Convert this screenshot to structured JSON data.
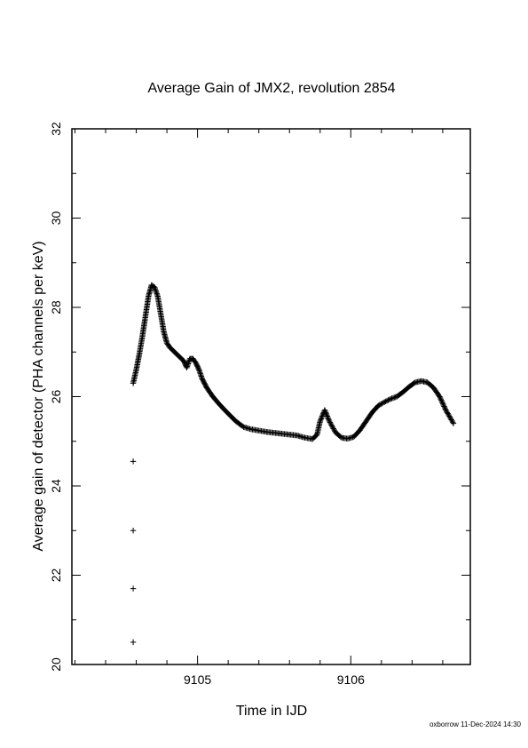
{
  "chart_data": {
    "type": "scatter",
    "title": "Average Gain of JMX2, revolution 2854",
    "xlabel": "Time in IJD",
    "ylabel": "Average gain of detector (PHA channels per keV)",
    "xlim": [
      9104.18,
      9106.78
    ],
    "ylim": [
      20,
      32
    ],
    "xticks": [
      9105,
      9106
    ],
    "xtick_labels": [
      "9105",
      "9106"
    ],
    "yticks": [
      20,
      22,
      24,
      26,
      28,
      30,
      32
    ],
    "ytick_labels": [
      "20",
      "22",
      "24",
      "26",
      "28",
      "30",
      "32"
    ],
    "marker": "plus",
    "grid": false,
    "legend": "none",
    "series": [
      {
        "curve": [
          [
            9104.58,
            26.3
          ],
          [
            9104.6,
            26.6
          ],
          [
            9104.62,
            26.95
          ],
          [
            9104.64,
            27.35
          ],
          [
            9104.66,
            27.8
          ],
          [
            9104.68,
            28.25
          ],
          [
            9104.7,
            28.5
          ],
          [
            9104.72,
            28.45
          ],
          [
            9104.74,
            28.25
          ],
          [
            9104.76,
            27.85
          ],
          [
            9104.78,
            27.45
          ],
          [
            9104.8,
            27.2
          ],
          [
            9104.82,
            27.1
          ],
          [
            9104.85,
            27.0
          ],
          [
            9104.88,
            26.9
          ],
          [
            9104.91,
            26.8
          ],
          [
            9104.93,
            26.65
          ],
          [
            9104.95,
            26.85
          ],
          [
            9104.97,
            26.85
          ],
          [
            9104.99,
            26.75
          ],
          [
            9105.01,
            26.6
          ],
          [
            9105.03,
            26.4
          ],
          [
            9105.06,
            26.2
          ],
          [
            9105.1,
            26.0
          ],
          [
            9105.15,
            25.8
          ],
          [
            9105.2,
            25.62
          ],
          [
            9105.25,
            25.45
          ],
          [
            9105.3,
            25.32
          ],
          [
            9105.35,
            25.27
          ],
          [
            9105.4,
            25.24
          ],
          [
            9105.45,
            25.21
          ],
          [
            9105.5,
            25.19
          ],
          [
            9105.55,
            25.17
          ],
          [
            9105.6,
            25.15
          ],
          [
            9105.65,
            25.13
          ],
          [
            9105.7,
            25.08
          ],
          [
            9105.75,
            25.05
          ],
          [
            9105.78,
            25.15
          ],
          [
            9105.8,
            25.45
          ],
          [
            9105.83,
            25.7
          ],
          [
            9105.86,
            25.45
          ],
          [
            9105.9,
            25.2
          ],
          [
            9105.94,
            25.08
          ],
          [
            9105.98,
            25.06
          ],
          [
            9106.02,
            25.1
          ],
          [
            9106.06,
            25.25
          ],
          [
            9106.1,
            25.45
          ],
          [
            9106.14,
            25.65
          ],
          [
            9106.18,
            25.8
          ],
          [
            9106.22,
            25.88
          ],
          [
            9106.26,
            25.95
          ],
          [
            9106.3,
            26.0
          ],
          [
            9106.34,
            26.1
          ],
          [
            9106.38,
            26.22
          ],
          [
            9106.42,
            26.32
          ],
          [
            9106.46,
            26.35
          ],
          [
            9106.5,
            26.32
          ],
          [
            9106.54,
            26.2
          ],
          [
            9106.58,
            26.0
          ],
          [
            9106.62,
            25.7
          ],
          [
            9106.67,
            25.4
          ]
        ],
        "points": [
          [
            9104.58,
            24.55
          ],
          [
            9104.58,
            23.0
          ],
          [
            9104.58,
            21.7
          ],
          [
            9104.58,
            20.5
          ]
        ]
      }
    ]
  },
  "footer": "oxborrow 11-Dec-2024 14:30"
}
